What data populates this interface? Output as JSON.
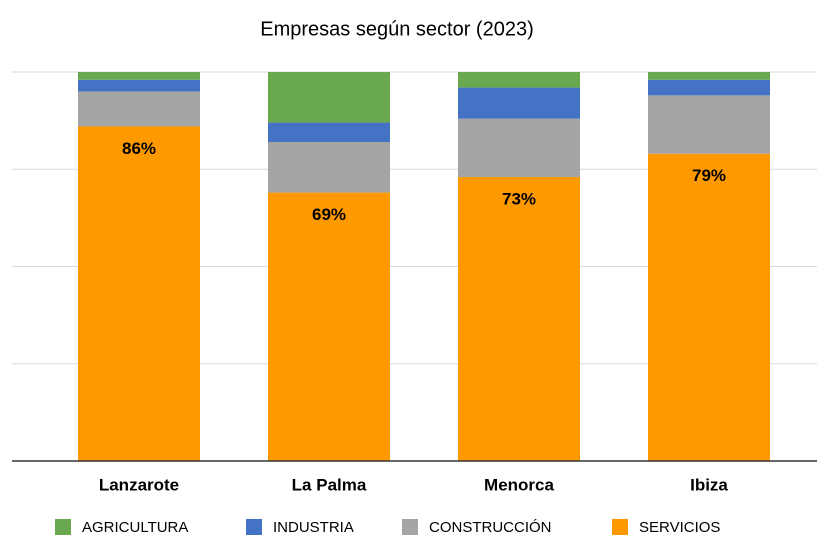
{
  "chart_data": {
    "type": "stacked_bar",
    "title": "Empresas según sector (2023)",
    "categories": [
      "Lanzarote",
      "La Palma",
      "Menorca",
      "Ibiza"
    ],
    "series": [
      {
        "name": "AGRICULTURA",
        "color": "#6aa84f",
        "values": [
          2,
          13,
          4,
          2
        ]
      },
      {
        "name": "INDUSTRIA",
        "color": "#4472c4",
        "values": [
          3,
          5,
          8,
          4
        ]
      },
      {
        "name": "CONSTRUCCIÓN",
        "color": "#a5a5a5",
        "values": [
          9,
          13,
          15,
          15
        ]
      },
      {
        "name": "SERVICIOS",
        "color": "#ff9900",
        "values": [
          86,
          69,
          73,
          79
        ],
        "value_labels": [
          "86%",
          "69%",
          "73%",
          "79%"
        ]
      }
    ],
    "ylim": [
      0,
      100
    ],
    "yticks": [
      0,
      25,
      50,
      75,
      100
    ],
    "grid": true,
    "legend": "bottom"
  }
}
